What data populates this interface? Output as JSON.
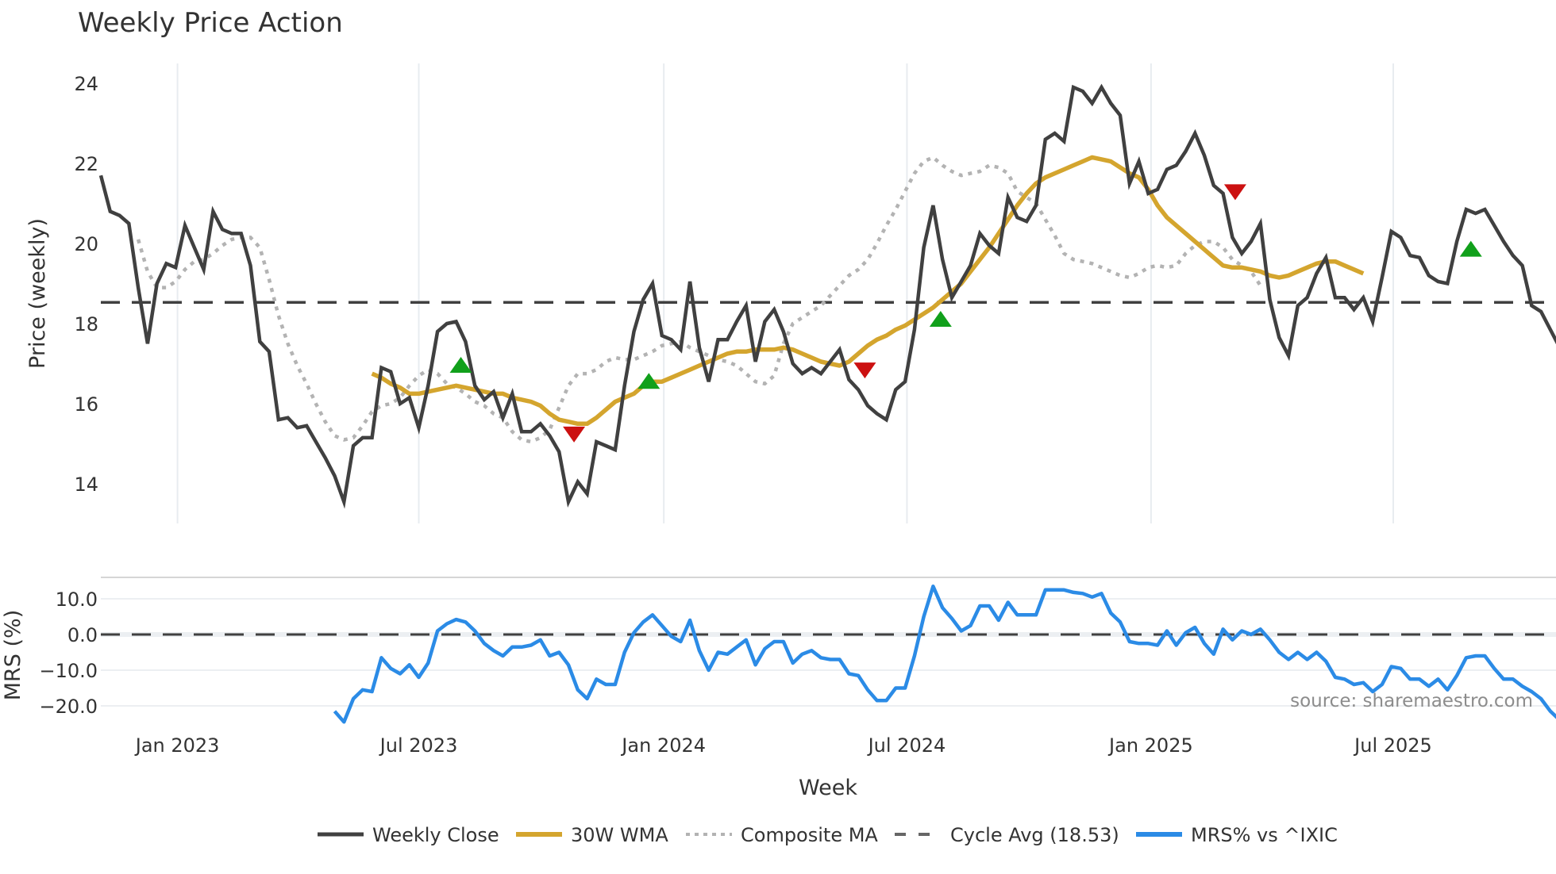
{
  "chart_data": {
    "type": "line",
    "title": "Weekly Price Action",
    "xlabel": "Week",
    "panels": [
      {
        "name": "price",
        "ylabel": "Price (weekly)",
        "ylim": [
          13,
          24.6
        ],
        "yticks": [
          14,
          16,
          18,
          20,
          22,
          24
        ],
        "grid": "vertical"
      },
      {
        "name": "mrs",
        "ylabel": "MRS (%)",
        "ylim": [
          -26,
          16
        ],
        "yticks": [
          10.0,
          0.0,
          -10.0,
          -20.0
        ],
        "ytick_labels": [
          "10.0",
          "0.0",
          "−10.0",
          "−20.0"
        ],
        "grid": "horizontal"
      }
    ],
    "x_tick_labels": [
      "Jan 2023",
      "Jul 2023",
      "Jan 2024",
      "Jul 2024",
      "Jan 2025",
      "Jul 2025"
    ],
    "x_tick_week_index": [
      8.2,
      34,
      60.2,
      86.2,
      112.3,
      138.2
    ],
    "x_start": "Nov 2022",
    "x_end": "Nov 2025",
    "series": [
      {
        "name": "Weekly Close",
        "color": "#404040",
        "style": "solid",
        "start_index": 0,
        "values": [
          21.7,
          20.8,
          20.7,
          20.5,
          18.9,
          17.5,
          19.0,
          19.5,
          19.4,
          20.45,
          19.9,
          19.35,
          20.8,
          20.35,
          20.25,
          20.25,
          19.45,
          17.55,
          17.3,
          15.6,
          15.65,
          15.4,
          15.45,
          15.05,
          14.65,
          14.2,
          13.55,
          14.95,
          15.15,
          15.15,
          16.9,
          16.8,
          16.0,
          16.15,
          15.4,
          16.45,
          17.8,
          18.0,
          18.05,
          17.55,
          16.45,
          16.1,
          16.3,
          15.65,
          16.25,
          15.3,
          15.3,
          15.5,
          15.2,
          14.8,
          13.55,
          14.05,
          13.75,
          15.05,
          14.95,
          14.85,
          16.45,
          17.8,
          18.6,
          19.0,
          17.7,
          17.6,
          17.35,
          19.05,
          17.4,
          16.55,
          17.6,
          17.6,
          18.05,
          18.45,
          17.05,
          18.05,
          18.35,
          17.8,
          17.0,
          16.75,
          16.9,
          16.75,
          17.05,
          17.35,
          16.6,
          16.35,
          15.95,
          15.75,
          15.6,
          16.35,
          16.55,
          17.85,
          19.9,
          20.95,
          19.6,
          18.65,
          19.05,
          19.45,
          20.25,
          19.95,
          19.75,
          21.15,
          20.65,
          20.55,
          20.95,
          22.6,
          22.75,
          22.55,
          23.9,
          23.8,
          23.5,
          23.9,
          23.5,
          23.2,
          21.5,
          22.05,
          21.25,
          21.35,
          21.85,
          21.95,
          22.3,
          22.75,
          22.2,
          21.45,
          21.25,
          20.15,
          19.75,
          20.05,
          20.5,
          18.6,
          17.65,
          17.2,
          18.45,
          18.65,
          19.25,
          19.65,
          18.65,
          18.65,
          18.35,
          18.65,
          18.05,
          19.15,
          20.3,
          20.15,
          19.7,
          19.65,
          19.2,
          19.05,
          19.0,
          20.05,
          20.85,
          20.75,
          20.85,
          20.45,
          20.05,
          19.7,
          19.45,
          18.45,
          18.3,
          17.85,
          17.4
        ]
      },
      {
        "name": "30W WMA",
        "color": "#d4a52e",
        "style": "solid",
        "start_index": 29,
        "values": [
          16.75,
          16.65,
          16.5,
          16.4,
          16.25,
          16.25,
          16.3,
          16.35,
          16.4,
          16.45,
          16.4,
          16.35,
          16.3,
          16.25,
          16.25,
          16.15,
          16.1,
          16.05,
          15.95,
          15.75,
          15.6,
          15.55,
          15.5,
          15.5,
          15.65,
          15.85,
          16.05,
          16.15,
          16.25,
          16.45,
          16.55,
          16.55,
          16.65,
          16.75,
          16.85,
          16.95,
          17.05,
          17.15,
          17.25,
          17.3,
          17.3,
          17.35,
          17.35,
          17.35,
          17.4,
          17.35,
          17.25,
          17.15,
          17.05,
          17.0,
          16.95,
          17.05,
          17.25,
          17.45,
          17.6,
          17.7,
          17.85,
          17.95,
          18.1,
          18.25,
          18.4,
          18.6,
          18.8,
          19.0,
          19.3,
          19.6,
          19.9,
          20.25,
          20.6,
          20.95,
          21.25,
          21.5,
          21.65,
          21.75,
          21.85,
          21.95,
          22.05,
          22.15,
          22.1,
          22.05,
          21.9,
          21.75,
          21.65,
          21.35,
          20.95,
          20.65,
          20.45,
          20.25,
          20.05,
          19.85,
          19.65,
          19.45,
          19.4,
          19.4,
          19.35,
          19.3,
          19.2,
          19.15,
          19.2,
          19.3,
          19.4,
          19.5,
          19.55,
          19.55,
          19.45,
          19.35,
          19.25
        ]
      },
      {
        "name": "Composite MA",
        "color": "#b3b3b3",
        "style": "dotted",
        "start_index": 4,
        "values": [
          20.1,
          19.3,
          18.9,
          18.9,
          19.05,
          19.35,
          19.55,
          19.6,
          19.75,
          19.95,
          20.1,
          20.15,
          20.15,
          19.9,
          19.1,
          18.2,
          17.5,
          16.95,
          16.5,
          16.0,
          15.55,
          15.2,
          15.1,
          15.15,
          15.45,
          15.8,
          15.95,
          16.0,
          16.15,
          16.45,
          16.7,
          16.85,
          16.75,
          16.5,
          16.4,
          16.25,
          16.05,
          15.95,
          15.75,
          15.65,
          15.3,
          15.1,
          15.05,
          15.15,
          15.35,
          15.9,
          16.45,
          16.75,
          16.75,
          16.85,
          17.05,
          17.15,
          17.1,
          17.1,
          17.2,
          17.3,
          17.45,
          17.5,
          17.55,
          17.4,
          17.3,
          17.2,
          17.1,
          17.05,
          16.95,
          16.75,
          16.55,
          16.5,
          16.7,
          17.5,
          18.0,
          18.15,
          18.3,
          18.45,
          18.7,
          18.95,
          19.2,
          19.35,
          19.6,
          20.0,
          20.45,
          20.85,
          21.3,
          21.75,
          22.05,
          22.15,
          21.95,
          21.8,
          21.7,
          21.75,
          21.8,
          21.95,
          21.9,
          21.75,
          21.3,
          21.15,
          21.0,
          20.6,
          20.2,
          19.75,
          19.6,
          19.55,
          19.5,
          19.4,
          19.3,
          19.2,
          19.15,
          19.25,
          19.4,
          19.45,
          19.4,
          19.45,
          19.75,
          19.95,
          20.05,
          20.05,
          19.9,
          19.6,
          19.45,
          19.3,
          18.95
        ]
      },
      {
        "name": "Cycle Avg (18.53)",
        "color": "#404040",
        "style": "dashed",
        "value": 18.53
      },
      {
        "name": "MRS% vs ^IXIC",
        "color": "#2b8be6",
        "style": "solid",
        "panel": "mrs",
        "start_index": 25,
        "values": [
          -21.5,
          -24.5,
          -18,
          -15.5,
          -16,
          -6.5,
          -9.5,
          -11,
          -8.5,
          -12,
          -8,
          1,
          3,
          4.2,
          3.5,
          1,
          -2.5,
          -4.5,
          -6,
          -3.5,
          -3.5,
          -3,
          -1.5,
          -6,
          -5,
          -8.5,
          -15.5,
          -18,
          -12.5,
          -14,
          -14,
          -5,
          0.5,
          3.5,
          5.5,
          2.5,
          -0.5,
          -2,
          4,
          -4.5,
          -10,
          -5,
          -5.5,
          -3.5,
          -1.5,
          -8.5,
          -4,
          -2,
          -2,
          -8,
          -5.5,
          -4.5,
          -6.5,
          -7,
          -7,
          -11,
          -11.5,
          -15.5,
          -18.5,
          -18.5,
          -15,
          -15,
          -6,
          5,
          13.5,
          7.5,
          4.5,
          1,
          2.5,
          8,
          8,
          4,
          9,
          5.5,
          5.5,
          5.5,
          12.5,
          12.5,
          12.5,
          11.8,
          11.5,
          10.5,
          11.5,
          6,
          3.5,
          -2,
          -2.5,
          -2.5,
          -3,
          1,
          -3,
          0.5,
          2,
          -2.5,
          -5.5,
          1.5,
          -1.5,
          1,
          0,
          1.5,
          -1.5,
          -5,
          -7,
          -5,
          -7,
          -5,
          -7.5,
          -12,
          -12.5,
          -14,
          -13.5,
          -16,
          -14,
          -9,
          -9.5,
          -12.5,
          -12.5,
          -14.5,
          -12.5,
          -15.5,
          -11.5,
          -6.5,
          -6,
          -6,
          -9.5,
          -12.5,
          -12.5,
          -14.5,
          -16,
          -18,
          -21.5,
          -24
        ]
      }
    ],
    "signals": [
      {
        "type": "buy",
        "week_index": 38.5,
        "price": 16.95,
        "color": "#11a01b"
      },
      {
        "type": "sell",
        "week_index": 50.6,
        "price": 15.25,
        "color": "#cc1111"
      },
      {
        "type": "buy",
        "week_index": 58.6,
        "price": 16.55,
        "color": "#11a01b"
      },
      {
        "type": "sell",
        "week_index": 81.7,
        "price": 16.85,
        "color": "#cc1111"
      },
      {
        "type": "buy",
        "week_index": 89.8,
        "price": 18.1,
        "color": "#11a01b"
      },
      {
        "type": "sell",
        "week_index": 121.3,
        "price": 21.3,
        "color": "#cc1111"
      },
      {
        "type": "buy",
        "week_index": 146.5,
        "price": 19.85,
        "color": "#11a01b"
      }
    ],
    "annotations": [
      "source: sharemaestro.com"
    ],
    "legend_position": "bottom"
  },
  "header": {
    "title": "Weekly Price Action"
  },
  "axes": {
    "price_ylabel": "Price (weekly)",
    "mrs_ylabel": "MRS (%)",
    "xlabel": "Week"
  },
  "legend": {
    "items": [
      {
        "label": "Weekly Close"
      },
      {
        "label": "30W WMA"
      },
      {
        "label": "Composite MA"
      },
      {
        "label": "Cycle Avg (18.53)"
      },
      {
        "label": "MRS% vs ^IXIC"
      }
    ]
  },
  "watermark": "source: sharemaestro.com"
}
